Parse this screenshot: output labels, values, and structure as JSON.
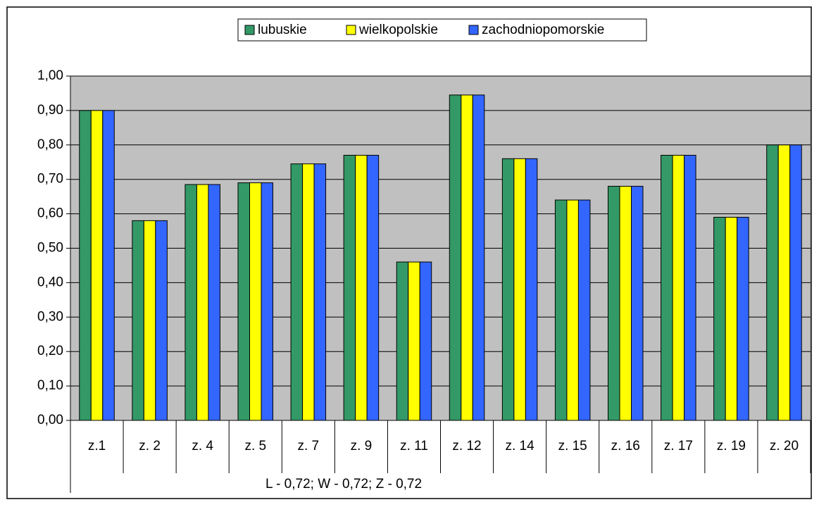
{
  "chart_data": {
    "type": "bar",
    "xlabel": "L - 0,72; W - 0,72; Z - 0,72",
    "categories": [
      "z.1",
      "z. 2",
      "z. 4",
      "z. 5",
      "z. 7",
      "z. 9",
      "z. 11",
      "z. 12",
      "z. 14",
      "z. 15",
      "z. 16",
      "z. 17",
      "z. 19",
      "z. 20"
    ],
    "series": [
      {
        "name": "lubuskie",
        "color": "#339966",
        "values": [
          0.9,
          0.58,
          0.685,
          0.69,
          0.745,
          0.77,
          0.46,
          0.945,
          0.76,
          0.64,
          0.68,
          0.77,
          0.59,
          0.8
        ]
      },
      {
        "name": "wielkopolskie",
        "color": "#ffff00",
        "values": [
          0.9,
          0.58,
          0.685,
          0.69,
          0.745,
          0.77,
          0.46,
          0.945,
          0.76,
          0.64,
          0.68,
          0.77,
          0.59,
          0.8
        ]
      },
      {
        "name": "zachodniopomorskie",
        "color": "#3366ff",
        "values": [
          0.9,
          0.58,
          0.685,
          0.69,
          0.745,
          0.77,
          0.46,
          0.945,
          0.76,
          0.64,
          0.68,
          0.77,
          0.59,
          0.8
        ]
      }
    ],
    "ylim": [
      0,
      1
    ],
    "yticks": [
      {
        "value": 0,
        "label": "0,00"
      },
      {
        "value": 0.1,
        "label": "0,10"
      },
      {
        "value": 0.2,
        "label": "0,20"
      },
      {
        "value": 0.3,
        "label": "0,30"
      },
      {
        "value": 0.4,
        "label": "0,40"
      },
      {
        "value": 0.5,
        "label": "0,50"
      },
      {
        "value": 0.6,
        "label": "0,60"
      },
      {
        "value": 0.7,
        "label": "0,70"
      },
      {
        "value": 0.8,
        "label": "0,80"
      },
      {
        "value": 0.9,
        "label": "0,90"
      },
      {
        "value": 1,
        "label": "1,00"
      }
    ],
    "grid": true,
    "legend": "top"
  }
}
